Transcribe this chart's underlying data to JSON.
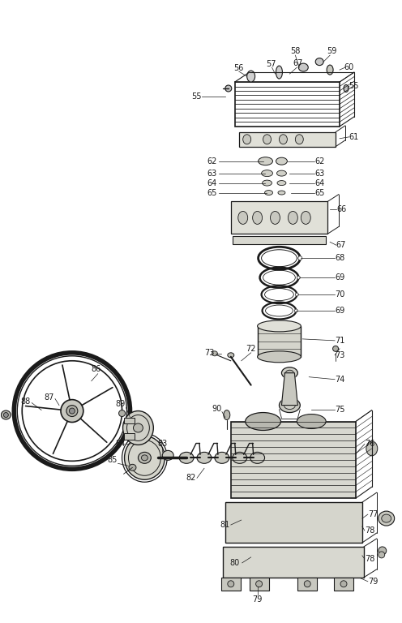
{
  "bg_color": "#ffffff",
  "line_color": "#1a1a1a",
  "fig_width": 4.96,
  "fig_height": 7.68,
  "dpi": 100
}
